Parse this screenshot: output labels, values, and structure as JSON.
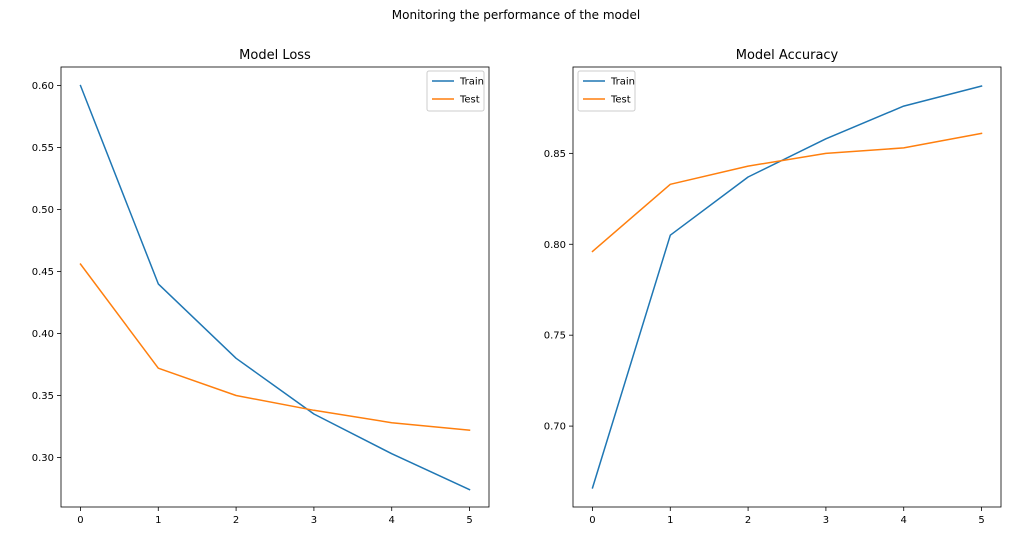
{
  "figure": {
    "suptitle": "Monitoring the performance of the model"
  },
  "colors": {
    "train": "#1f77b4",
    "test": "#ff7f0e"
  },
  "chart_data": [
    {
      "type": "line",
      "title": "Model Loss",
      "xlabel": "",
      "ylabel": "",
      "x": [
        0,
        1,
        2,
        3,
        4,
        5
      ],
      "xlim": [
        -0.25,
        5.25
      ],
      "ylim": [
        0.26,
        0.615
      ],
      "xticks": [
        0,
        1,
        2,
        3,
        4,
        5
      ],
      "yticks": [
        0.3,
        0.35,
        0.4,
        0.45,
        0.5,
        0.55,
        0.6
      ],
      "ytick_labels": [
        "0.30",
        "0.35",
        "0.40",
        "0.45",
        "0.50",
        "0.55",
        "0.60"
      ],
      "legend_location": "upper right",
      "grid": false,
      "series": [
        {
          "name": "Train",
          "values": [
            0.6,
            0.44,
            0.38,
            0.335,
            0.303,
            0.274
          ]
        },
        {
          "name": "Test",
          "values": [
            0.456,
            0.372,
            0.35,
            0.338,
            0.328,
            0.322
          ]
        }
      ]
    },
    {
      "type": "line",
      "title": "Model Accuracy",
      "xlabel": "",
      "ylabel": "",
      "x": [
        0,
        1,
        2,
        3,
        4,
        5
      ],
      "xlim": [
        -0.25,
        5.25
      ],
      "ylim": [
        0.6555,
        0.8975
      ],
      "xticks": [
        0,
        1,
        2,
        3,
        4,
        5
      ],
      "yticks": [
        0.7,
        0.75,
        0.8,
        0.85
      ],
      "ytick_labels": [
        "0.70",
        "0.75",
        "0.80",
        "0.85"
      ],
      "legend_location": "upper left",
      "grid": false,
      "series": [
        {
          "name": "Train",
          "values": [
            0.666,
            0.805,
            0.837,
            0.858,
            0.876,
            0.887
          ]
        },
        {
          "name": "Test",
          "values": [
            0.796,
            0.833,
            0.843,
            0.85,
            0.853,
            0.861
          ]
        }
      ]
    }
  ]
}
